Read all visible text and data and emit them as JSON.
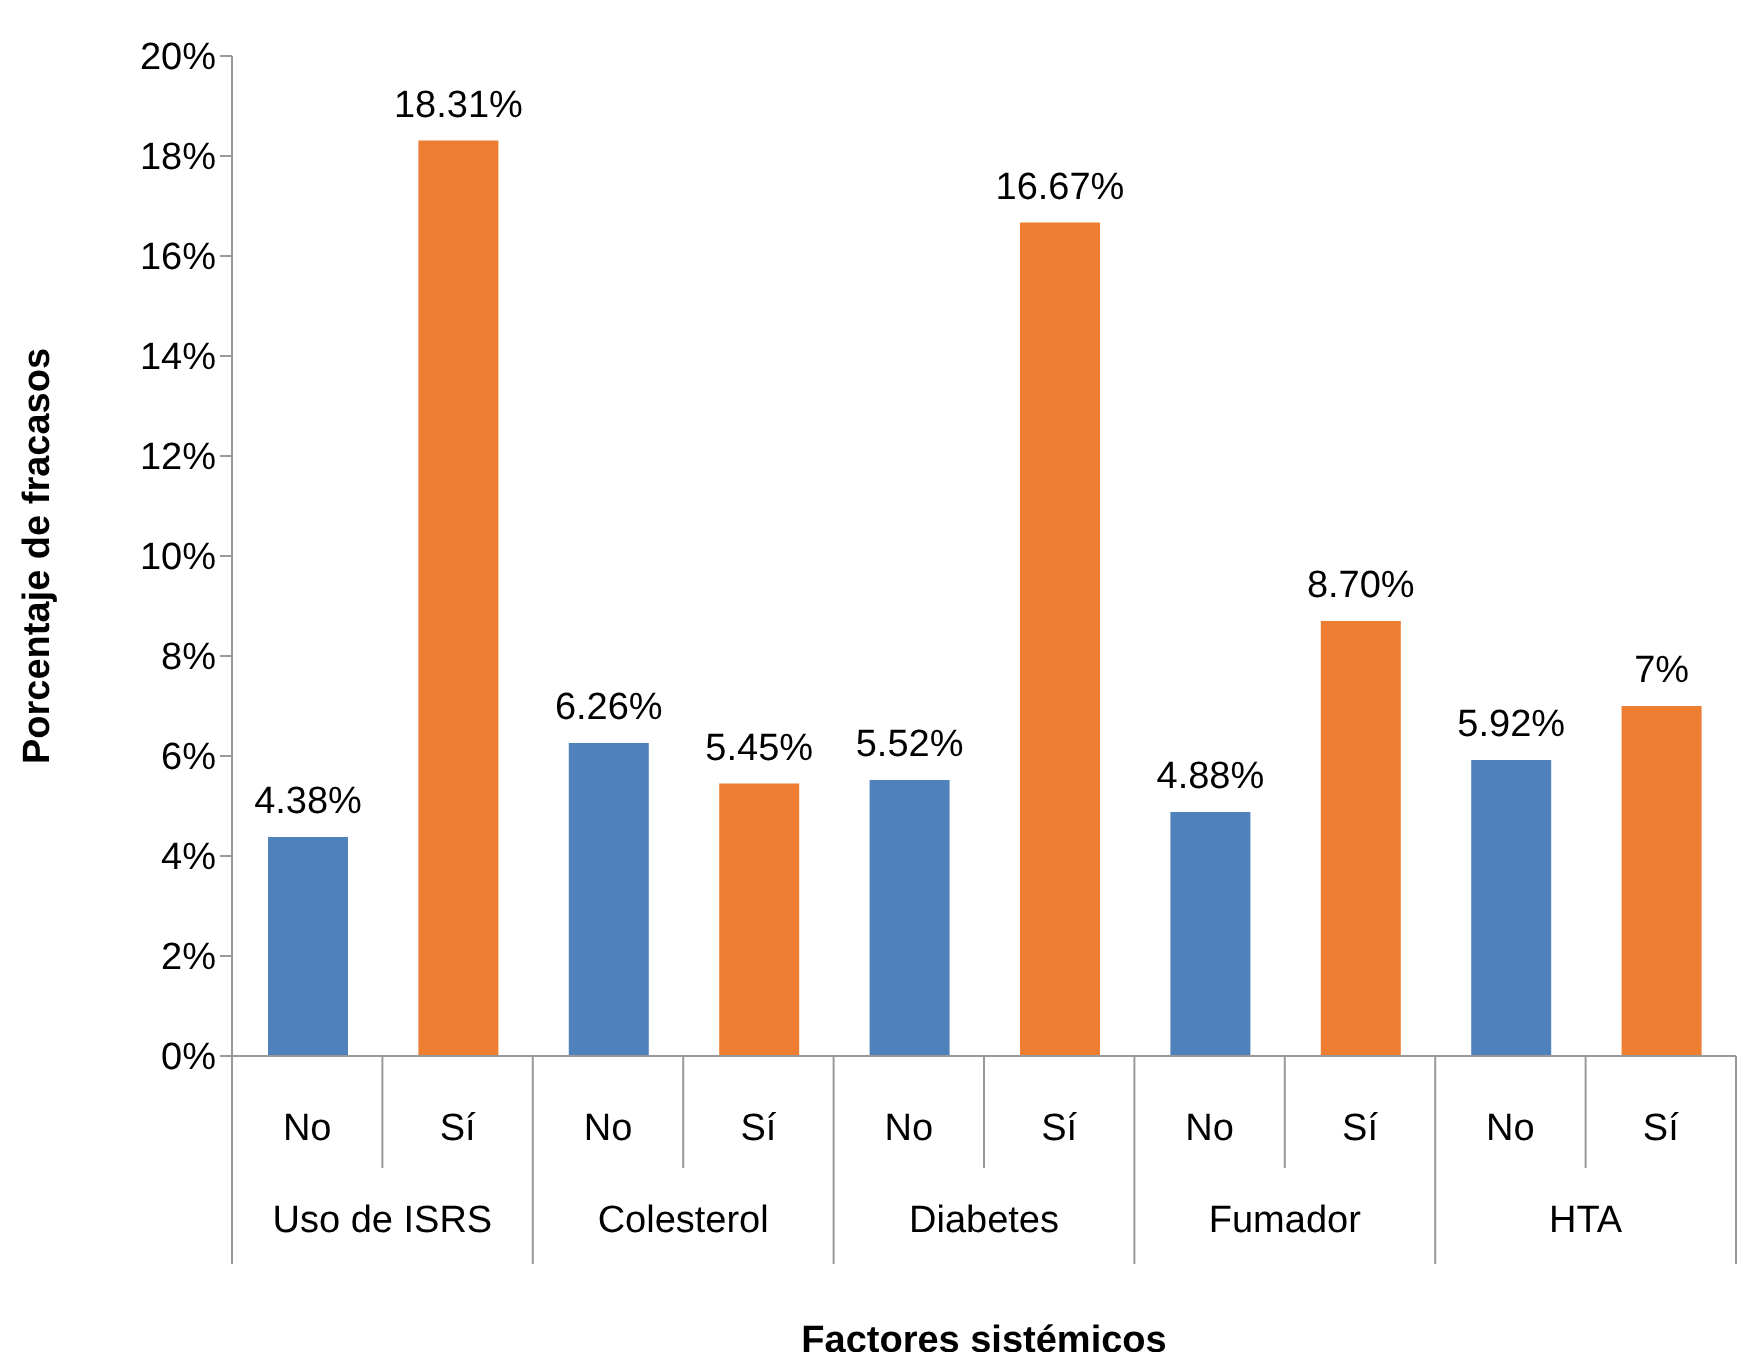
{
  "chart_data": {
    "type": "bar",
    "xlabel": "Factores sistémicos",
    "ylabel": "Porcentaje de fracasos",
    "categories": [
      "No",
      "Sí",
      "No",
      "Sí",
      "No",
      "Sí",
      "No",
      "Sí",
      "No",
      "Sí"
    ],
    "values": [
      4.38,
      18.31,
      6.26,
      5.45,
      5.52,
      16.67,
      4.88,
      8.7,
      5.92,
      7
    ],
    "colors": [
      "#4f81bd",
      "#ed7d31",
      "#4f81bd",
      "#ed7d31",
      "#4f81bd",
      "#ed7d31",
      "#4f81bd",
      "#ed7d31",
      "#4f81bd",
      "#ed7d31"
    ],
    "value_labels": [
      "4.38%",
      "18.31%",
      "6.26%",
      "5.45%",
      "5.52%",
      "16.67%",
      "4.88%",
      "8.70%",
      "5.92%",
      "7%"
    ],
    "annotations": [
      "Uso de ISRS",
      "Colesterol",
      "Diabetes",
      "Fumador",
      "HTA"
    ],
    "ylim": [
      0,
      20
    ],
    "yticks": [
      {
        "value": 0,
        "label": "0%"
      },
      {
        "value": 2,
        "label": "2%"
      },
      {
        "value": 4,
        "label": "4%"
      },
      {
        "value": 6,
        "label": "6%"
      },
      {
        "value": 8,
        "label": "8%"
      },
      {
        "value": 10,
        "label": "10%"
      },
      {
        "value": 12,
        "label": "12%"
      },
      {
        "value": 14,
        "label": "14%"
      },
      {
        "value": 16,
        "label": "16%"
      },
      {
        "value": 18,
        "label": "18%"
      },
      {
        "value": 20,
        "label": "20%"
      }
    ],
    "grid": false,
    "legend": false
  }
}
